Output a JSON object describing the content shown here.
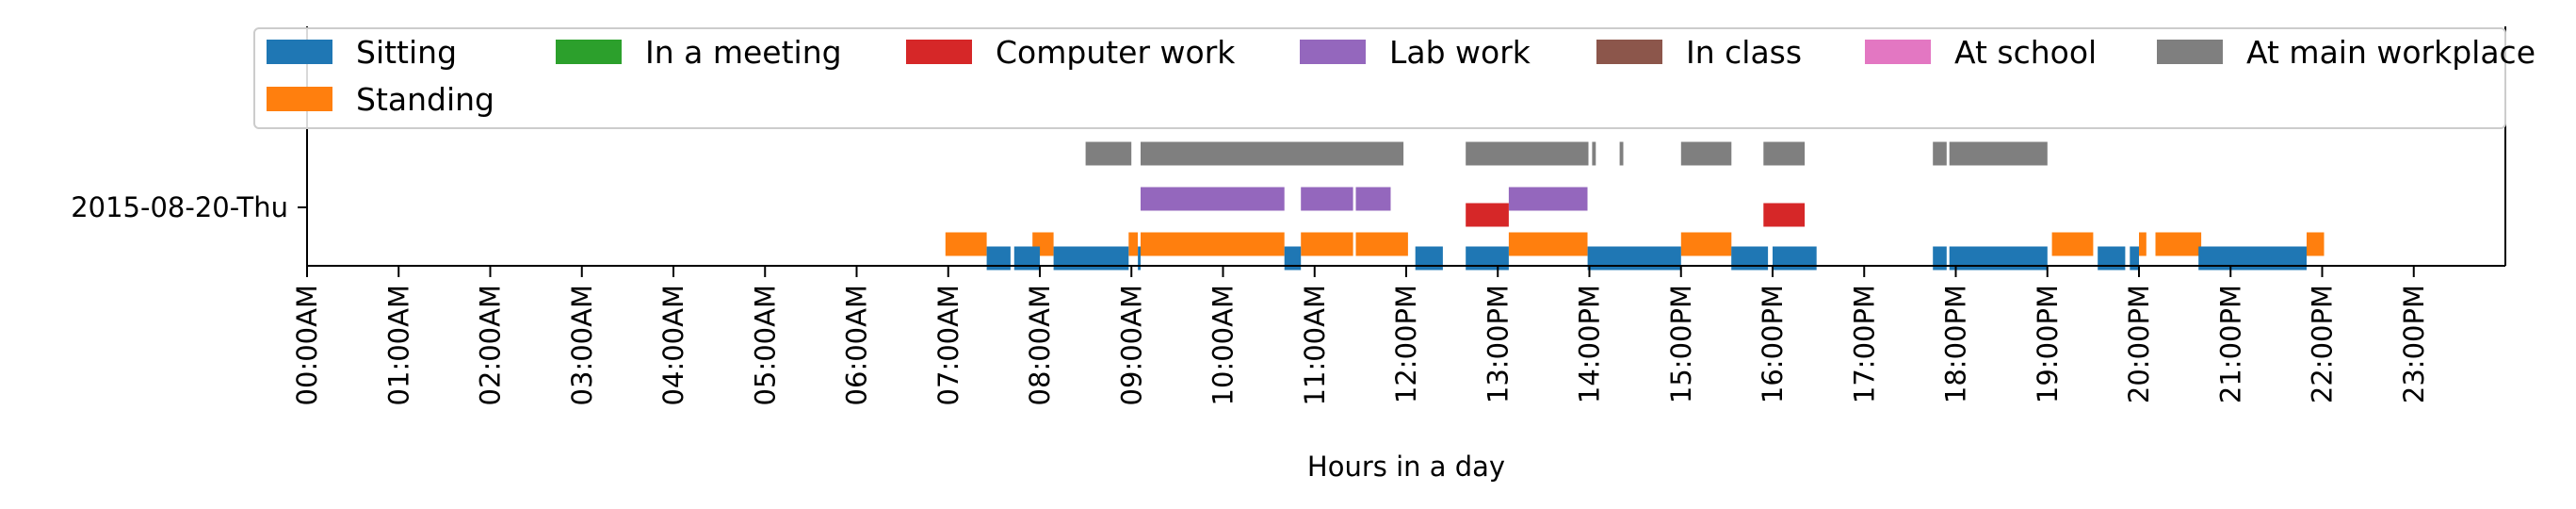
{
  "chart_data": {
    "type": "bar",
    "xlabel": "Hours in a day",
    "ylabel": "",
    "title": "",
    "xlim": [
      0,
      24
    ],
    "row_label": "2015-08-20-Thu",
    "x_ticks": [
      "00:00AM",
      "01:00AM",
      "02:00AM",
      "03:00AM",
      "04:00AM",
      "05:00AM",
      "06:00AM",
      "07:00AM",
      "08:00AM",
      "09:00AM",
      "10:00AM",
      "11:00AM",
      "12:00PM",
      "13:00PM",
      "14:00PM",
      "15:00PM",
      "16:00PM",
      "17:00PM",
      "18:00PM",
      "19:00PM",
      "20:00PM",
      "21:00PM",
      "22:00PM",
      "23:00PM"
    ],
    "grid": false,
    "legend_placement": "top",
    "legend": [
      {
        "name": "Sitting",
        "color": "#1f77b4"
      },
      {
        "name": "In a meeting",
        "color": "#2ca02c"
      },
      {
        "name": "Computer work",
        "color": "#d62728"
      },
      {
        "name": "Lab work",
        "color": "#9467bd"
      },
      {
        "name": "In class",
        "color": "#8c564b"
      },
      {
        "name": "At school",
        "color": "#e377c2"
      },
      {
        "name": "At main workplace",
        "color": "#7f7f7f"
      },
      {
        "name": "Standing",
        "color": "#ff7f0e"
      }
    ],
    "lanes": [
      {
        "series": "At main workplace",
        "color": "#7f7f7f",
        "level": 4,
        "intervals": [
          [
            8.5,
            9.0
          ],
          [
            9.1,
            11.97
          ],
          [
            12.65,
            13.99
          ],
          [
            14.03,
            14.07
          ],
          [
            14.33,
            14.37
          ],
          [
            15.0,
            15.55
          ],
          [
            15.9,
            16.35
          ],
          [
            17.75,
            17.9
          ],
          [
            17.93,
            19.0
          ]
        ]
      },
      {
        "series": "Lab work",
        "color": "#9467bd",
        "level": 3,
        "intervals": [
          [
            9.1,
            10.67
          ],
          [
            10.85,
            11.42
          ],
          [
            11.45,
            11.83
          ],
          [
            13.12,
            13.98
          ]
        ]
      },
      {
        "series": "Computer work",
        "color": "#d62728",
        "level": 2,
        "intervals": [
          [
            12.65,
            13.12
          ],
          [
            15.9,
            16.35
          ]
        ]
      },
      {
        "series": "Standing",
        "color": "#ff7f0e",
        "level": 1,
        "intervals": [
          [
            6.97,
            7.42
          ],
          [
            7.92,
            8.15
          ],
          [
            8.97,
            9.07
          ],
          [
            9.1,
            10.67
          ],
          [
            10.85,
            11.42
          ],
          [
            11.45,
            12.02
          ],
          [
            13.12,
            13.98
          ],
          [
            15.0,
            15.55
          ],
          [
            19.05,
            19.5
          ],
          [
            20.0,
            20.08
          ],
          [
            20.18,
            20.68
          ],
          [
            21.83,
            22.02
          ]
        ]
      },
      {
        "series": "Sitting",
        "color": "#1f77b4",
        "level": 0,
        "intervals": [
          [
            7.42,
            7.68
          ],
          [
            7.72,
            8.0
          ],
          [
            8.15,
            8.97
          ],
          [
            9.07,
            9.1
          ],
          [
            10.67,
            10.85
          ],
          [
            12.1,
            12.4
          ],
          [
            12.65,
            13.12
          ],
          [
            13.98,
            15.0
          ],
          [
            15.55,
            15.95
          ],
          [
            16.0,
            16.48
          ],
          [
            17.75,
            17.9
          ],
          [
            17.93,
            19.0
          ],
          [
            19.55,
            19.85
          ],
          [
            19.9,
            20.0
          ],
          [
            20.65,
            21.83
          ]
        ]
      }
    ]
  }
}
